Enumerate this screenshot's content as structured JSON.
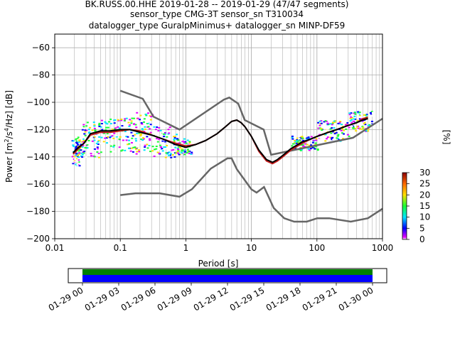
{
  "title_lines": [
    "BK.RUSS.00.HHE   2019-01-28 -- 2019-01-29  (47/47 segments)",
    "sensor_type CMG-3T sensor_sn T310034",
    "datalogger_type GuralpMinimus+ datalogger_sn MINP-DF59"
  ],
  "chart_data": [
    {
      "type": "heatmap",
      "subtype": "ppsd",
      "xlabel": "Period [s]",
      "ylabel_parts": [
        "Power [m",
        "2",
        "/s",
        "4",
        "/Hz] [dB]"
      ],
      "xscale": "log",
      "xlim": [
        0.01,
        1000
      ],
      "ylim": [
        -200,
        -50
      ],
      "x_tick_values": [
        0.01,
        0.1,
        1,
        10,
        100,
        1000
      ],
      "x_tick_labels": [
        "0.01",
        "0.1",
        "1",
        "10",
        "100",
        "1000"
      ],
      "y_tick_values": [
        -200,
        -180,
        -160,
        -140,
        -120,
        -100,
        -80,
        -60
      ],
      "y_tick_labels": [
        "−200",
        "−180",
        "−160",
        "−140",
        "−120",
        "−100",
        "−80",
        "−60"
      ],
      "grid": true,
      "colors": {
        "noise_model": "#666666",
        "mean": "#000000",
        "mode": "#c51b1b",
        "blue": "#0000ff",
        "magenta": "#e500ff",
        "cyan": "#00e5ff",
        "green": "#19ff33",
        "yellow": "#ffe000",
        "white": "#ffffff"
      },
      "noise_model_high": {
        "period": [
          0.1,
          0.22,
          0.32,
          0.8,
          3.8,
          4.6,
          6.3,
          7.9,
          15.4,
          20,
          354.8,
          1000
        ],
        "power": [
          -91.5,
          -97.4,
          -110.5,
          -120,
          -98,
          -96.5,
          -101,
          -113,
          -120,
          -138.5,
          -126,
          -112
        ]
      },
      "noise_model_low": {
        "period": [
          0.1,
          0.17,
          0.4,
          0.8,
          1.24,
          2.4,
          4.3,
          5,
          6,
          10,
          12,
          15.6,
          21.9,
          31.6,
          45,
          70,
          101,
          154,
          328,
          600,
          1000
        ],
        "power": [
          -168,
          -166.7,
          -166.7,
          -169.2,
          -163.7,
          -148.6,
          -141.1,
          -141.1,
          -149,
          -163.8,
          -166.2,
          -162.1,
          -177.5,
          -185,
          -187.5,
          -187.5,
          -185,
          -185,
          -187.5,
          -185,
          -178
        ]
      },
      "mean_curve": {
        "period": [
          0.019,
          0.023,
          0.028,
          0.035,
          0.05,
          0.07,
          0.1,
          0.14,
          0.2,
          0.3,
          0.45,
          0.7,
          1,
          1.4,
          2,
          3,
          4,
          5,
          6,
          7,
          8,
          10,
          13,
          17,
          21,
          25,
          30,
          40,
          60,
          80,
          100,
          150,
          200,
          300,
          400,
          500,
          600
        ],
        "power": [
          -137,
          -133,
          -130,
          -123,
          -121,
          -121,
          -120,
          -120,
          -122,
          -124,
          -127,
          -131,
          -133,
          -131,
          -128,
          -123,
          -118,
          -114,
          -113,
          -115,
          -118,
          -125,
          -135,
          -142,
          -144,
          -142,
          -139,
          -134,
          -129,
          -127,
          -125,
          -122,
          -120,
          -117,
          -115,
          -113,
          -112
        ]
      },
      "mode_curve": {
        "period": [
          0.019,
          0.023,
          0.028,
          0.035,
          0.05,
          0.07,
          0.1,
          0.14,
          0.2,
          0.3,
          0.45,
          0.7,
          1,
          1.4,
          2,
          3,
          4,
          5,
          6,
          7,
          8,
          10,
          13,
          17,
          21,
          25,
          30,
          40,
          60,
          80,
          100,
          150,
          200,
          300,
          400,
          500,
          600
        ],
        "power": [
          -138,
          -134,
          -130,
          -124,
          -122,
          -122,
          -121,
          -120,
          -121,
          -124,
          -127,
          -130,
          -132,
          -131,
          -128,
          -123,
          -118,
          -114,
          -113,
          -115,
          -118,
          -125,
          -136,
          -143,
          -145,
          -143,
          -140,
          -135,
          -130,
          -127,
          -125,
          -122,
          -120,
          -117,
          -115,
          -112,
          -111
        ]
      },
      "density_scatter": [
        {
          "period_range": [
            0.018,
            0.025
          ],
          "power_range": [
            -146,
            -125
          ],
          "levels": [
            4,
            8,
            14
          ]
        },
        {
          "period_range": [
            0.025,
            0.05
          ],
          "power_range": [
            -140,
            -114
          ],
          "levels": [
            2,
            6,
            10,
            16
          ]
        },
        {
          "period_range": [
            0.05,
            0.14
          ],
          "power_range": [
            -136,
            -111
          ],
          "levels": [
            1,
            3,
            6,
            10,
            18
          ]
        },
        {
          "period_range": [
            0.14,
            0.3
          ],
          "power_range": [
            -139,
            -107
          ],
          "levels": [
            1,
            3,
            5,
            9,
            14
          ]
        },
        {
          "period_range": [
            0.3,
            0.7
          ],
          "power_range": [
            -140,
            -117
          ],
          "levels": [
            2,
            4,
            8,
            12,
            18
          ]
        },
        {
          "period_range": [
            0.7,
            1.2
          ],
          "power_range": [
            -138,
            -126
          ],
          "levels": [
            5,
            9,
            14
          ]
        },
        {
          "period_range": [
            40,
            100
          ],
          "power_range": [
            -135,
            -124
          ],
          "levels": [
            6,
            10,
            15
          ]
        },
        {
          "period_range": [
            100,
            300
          ],
          "power_range": [
            -128,
            -113
          ],
          "levels": [
            5,
            9,
            14
          ]
        },
        {
          "period_range": [
            300,
            700
          ],
          "power_range": [
            -121,
            -106
          ],
          "levels": [
            3,
            8,
            12,
            16
          ]
        }
      ]
    },
    {
      "type": "colorbar",
      "label": "[%]",
      "range": [
        0,
        30
      ],
      "tick_values": [
        0,
        5,
        10,
        15,
        20,
        25,
        30
      ],
      "tick_labels": [
        "0",
        "5",
        "10",
        "15",
        "20",
        "25",
        "30"
      ],
      "stops": [
        {
          "value": 0,
          "color": "#ffffff"
        },
        {
          "value": 1,
          "color": "#e500ff"
        },
        {
          "value": 5,
          "color": "#0000ff"
        },
        {
          "value": 10,
          "color": "#00e5ff"
        },
        {
          "value": 15,
          "color": "#19ff33"
        },
        {
          "value": 20,
          "color": "#ffe000"
        },
        {
          "value": 25,
          "color": "#ff6a00"
        },
        {
          "value": 30,
          "color": "#8b0000"
        }
      ]
    },
    {
      "type": "timeline",
      "tick_labels": [
        "01-29 00",
        "01-29 03",
        "01-29 06",
        "01-29 09",
        "01-29 12",
        "01-29 15",
        "01-29 18",
        "01-29 21",
        "01-30 00"
      ],
      "coverage_colors": {
        "top": "#008000",
        "bottom": "#0000ff"
      }
    }
  ]
}
